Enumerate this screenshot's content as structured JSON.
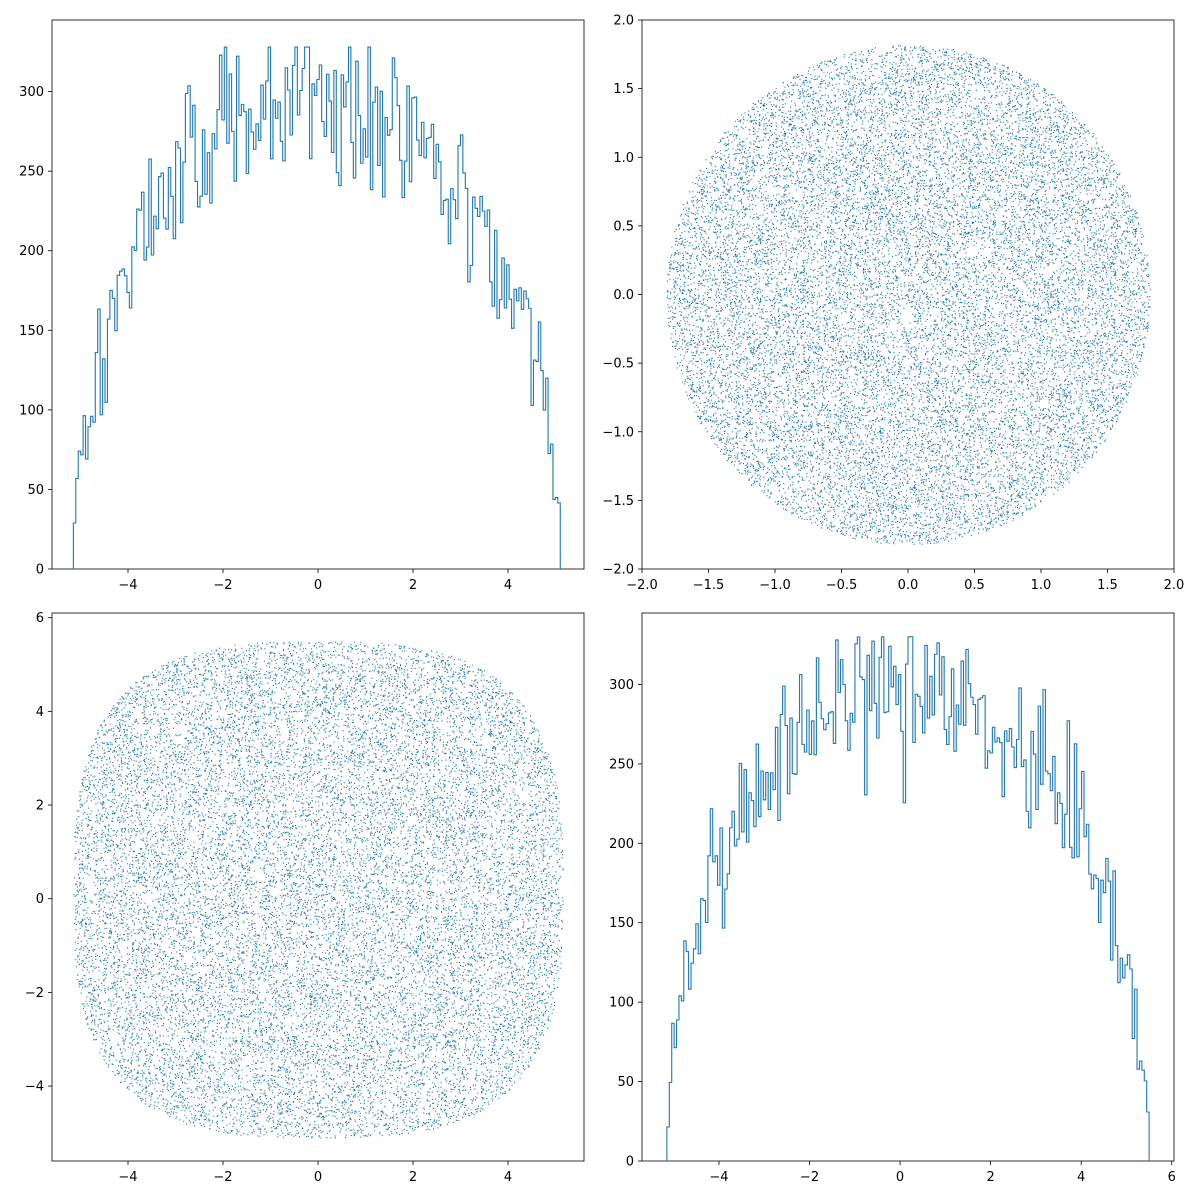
{
  "style": {
    "line_color": "#1f77b4",
    "axis_color": "#000000",
    "background": "#ffffff"
  },
  "chart_data": [
    {
      "panel": "top-left",
      "type": "histogram",
      "description": "step histogram of x-coordinates of points uniformly filling a disk",
      "xlim": [
        -5.6,
        5.6
      ],
      "ylim": [
        0,
        345
      ],
      "xticks": [
        -4,
        -2,
        0,
        2,
        4
      ],
      "xtick_labels": [
        "−4",
        "−2",
        "0",
        "2",
        "4"
      ],
      "yticks": [
        0,
        50,
        100,
        150,
        200,
        250,
        300
      ],
      "ytick_labels": [
        "0",
        "50",
        "100",
        "150",
        "200",
        "250",
        "300"
      ],
      "range": [
        -5.15,
        5.1
      ],
      "bins": 200,
      "peak": 300,
      "max_value": 328,
      "grid": false
    },
    {
      "panel": "top-right",
      "type": "scatter",
      "description": "dense point cloud filling a circle",
      "shape": "disk",
      "center": [
        0,
        0
      ],
      "radius": 1.82,
      "xlim": [
        -2.0,
        2.0
      ],
      "ylim": [
        -2.0,
        2.0
      ],
      "xticks": [
        -2.0,
        -1.5,
        -1.0,
        -0.5,
        0.0,
        0.5,
        1.0,
        1.5,
        2.0
      ],
      "xtick_labels": [
        "−2.0",
        "−1.5",
        "−1.0",
        "−0.5",
        "0.0",
        "0.5",
        "1.0",
        "1.5",
        "2.0"
      ],
      "yticks": [
        -2.0,
        -1.5,
        -1.0,
        -0.5,
        0.0,
        0.5,
        1.0,
        1.5,
        2.0
      ],
      "ytick_labels": [
        "−2.0",
        "−1.5",
        "−1.0",
        "−0.5",
        "0.0",
        "0.5",
        "1.0",
        "1.5",
        "2.0"
      ],
      "grid": false
    },
    {
      "panel": "bottom-left",
      "type": "scatter",
      "description": "dense point cloud filling a rounded square (superellipse)",
      "shape": "rounded-square",
      "center": [
        0,
        0.2
      ],
      "half_width": 5.15,
      "half_height": 5.3,
      "exponent": 3,
      "xlim": [
        -5.6,
        5.6
      ],
      "ylim": [
        -5.6,
        6.1
      ],
      "xticks": [
        -4,
        -2,
        0,
        2,
        4
      ],
      "xtick_labels": [
        "−4",
        "−2",
        "0",
        "2",
        "4"
      ],
      "yticks": [
        -4,
        -2,
        0,
        2,
        4,
        6
      ],
      "ytick_labels": [
        "−4",
        "−2",
        "0",
        "2",
        "4",
        "6"
      ],
      "grid": false
    },
    {
      "panel": "bottom-right",
      "type": "histogram",
      "description": "step histogram of a semicircle-like distribution",
      "xlim": [
        -5.7,
        6.05
      ],
      "ylim": [
        0,
        345
      ],
      "xticks": [
        -4,
        -2,
        0,
        2,
        4,
        6
      ],
      "xtick_labels": [
        "−4",
        "−2",
        "0",
        "2",
        "4",
        "6"
      ],
      "yticks": [
        0,
        50,
        100,
        150,
        200,
        250,
        300
      ],
      "ytick_labels": [
        "0",
        "50",
        "100",
        "150",
        "200",
        "250",
        "300"
      ],
      "range": [
        -5.15,
        5.5
      ],
      "bins": 200,
      "peak": 295,
      "max_value": 330,
      "grid": false
    }
  ]
}
